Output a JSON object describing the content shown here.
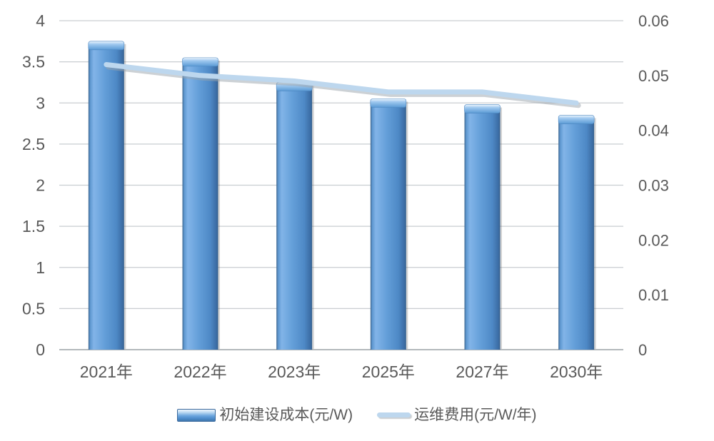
{
  "chart_data": {
    "type": "combo-bar-line",
    "categories": [
      "2021年",
      "2022年",
      "2023年",
      "2025年",
      "2027年",
      "2030年"
    ],
    "series": [
      {
        "name": "初始建设成本(元/W)",
        "type": "bar",
        "axis": "left",
        "values": [
          3.75,
          3.55,
          3.25,
          3.05,
          2.98,
          2.85
        ],
        "color": "#5b9bd5"
      },
      {
        "name": "运维费用(元/W/年)",
        "type": "line",
        "axis": "right",
        "values": [
          0.052,
          0.05,
          0.049,
          0.047,
          0.047,
          0.045
        ],
        "color": "#bdd7ee"
      }
    ],
    "left_axis": {
      "min": 0,
      "max": 4,
      "step": 0.5,
      "ticks": [
        "0",
        "0.5",
        "1",
        "1.5",
        "2",
        "2.5",
        "3",
        "3.5",
        "4"
      ]
    },
    "right_axis": {
      "min": 0,
      "max": 0.06,
      "step": 0.01,
      "ticks": [
        "0",
        "0.01",
        "0.02",
        "0.03",
        "0.04",
        "0.05",
        "0.06"
      ]
    },
    "grid": "horizontal",
    "legend_position": "bottom"
  },
  "legend": {
    "bar_label": "初始建设成本(元/W)",
    "line_label": "运维费用(元/W/年)"
  },
  "colors": {
    "bar_fill": "#5b9bd5",
    "bar_light": "#82b4e8",
    "bar_dark": "#3c6da5",
    "bar_darker": "#35608c",
    "cap_light": "#eef6fd",
    "cap_mid": "#9fc8ef",
    "line": "#bdd7ee",
    "line_shadow": "#9aa3ac",
    "grid": "#c9cdd1",
    "axis": "#9aa0a6",
    "text": "#595959",
    "background": "#ffffff"
  }
}
